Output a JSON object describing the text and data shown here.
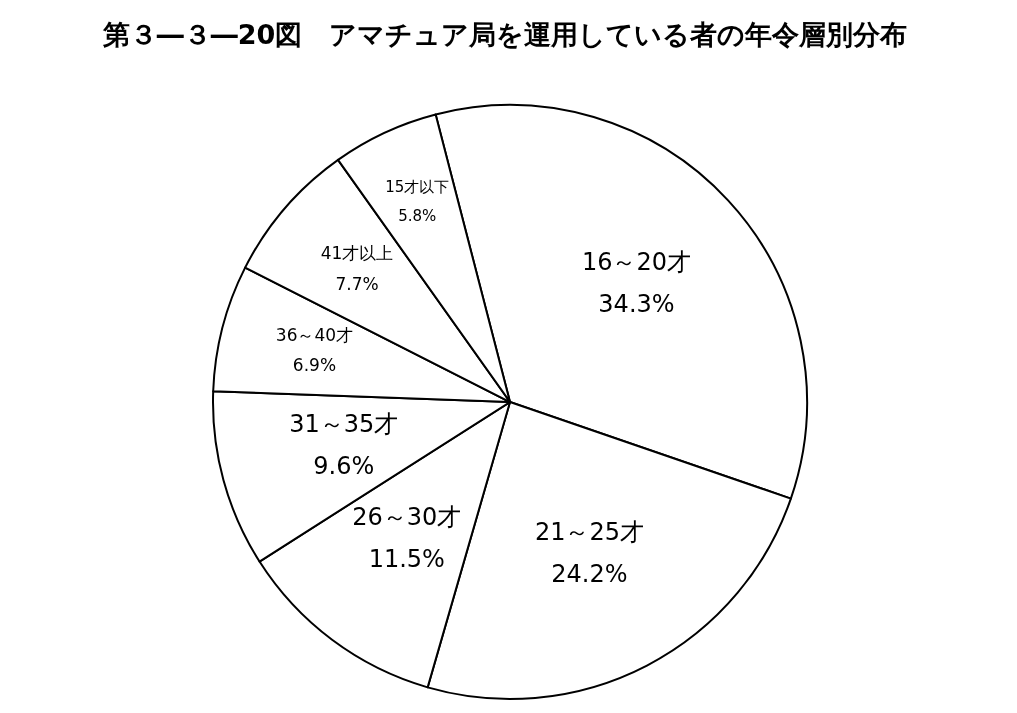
{
  "chart_data": {
    "type": "pie",
    "title": "第３―３―20図　アマチュア局を運用している者の年令層別分布",
    "categories": [
      "16～20才",
      "21～25才",
      "26～30才",
      "31～35才",
      "36～40才",
      "41才以上",
      "15才以下"
    ],
    "values": [
      34.3,
      24.2,
      11.5,
      9.6,
      6.9,
      7.7,
      5.8
    ],
    "value_labels": [
      "34.3%",
      "24.2%",
      "11.5%",
      "9.6%",
      "6.9%",
      "7.7%",
      "5.8%"
    ],
    "colors": [
      "#ffffff",
      "#ffffff",
      "#ffffff",
      "#ffffff",
      "#ffffff",
      "#ffffff",
      "#ffffff"
    ]
  }
}
